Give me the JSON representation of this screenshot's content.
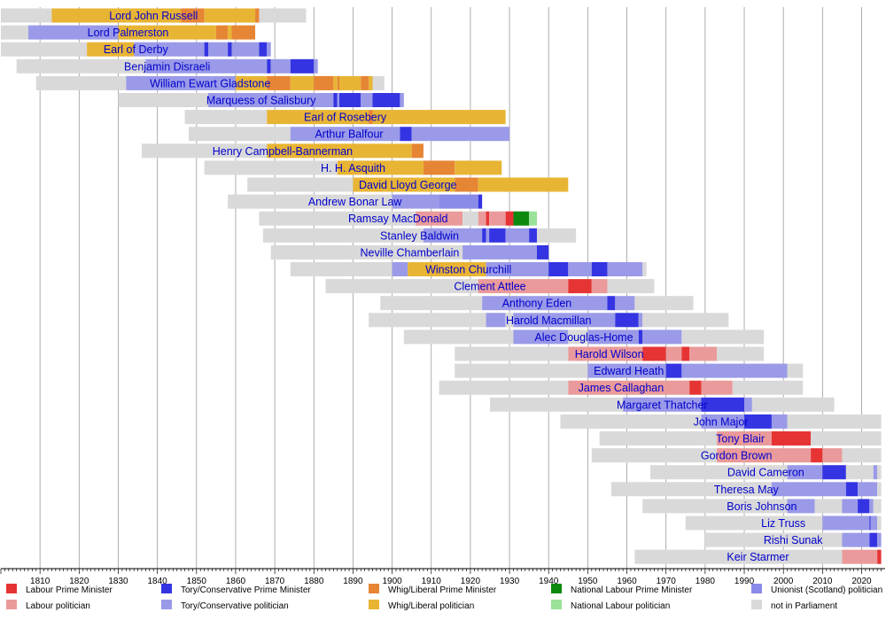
{
  "chart_data": {
    "type": "timeline",
    "title": "",
    "xlabel": "",
    "ylabel": "",
    "xlim": [
      1800,
      2026
    ],
    "grid": true,
    "x_ticks": [
      1810,
      1820,
      1830,
      1840,
      1850,
      1860,
      1870,
      1880,
      1890,
      1900,
      1910,
      1920,
      1930,
      1940,
      1950,
      1960,
      1970,
      1980,
      1990,
      2000,
      2010,
      2020
    ],
    "legend_position": "bottom",
    "categories": {
      "labour_pm": {
        "label": "Labour Prime Minister",
        "color": "#e63434"
      },
      "labour": {
        "label": "Labour politician",
        "color": "#ea9a9a"
      },
      "tory_pm": {
        "label": "Tory/Conservative Prime Minister",
        "color": "#3434e3"
      },
      "tory": {
        "label": "Tory/Conservative politician",
        "color": "#9a9ae8"
      },
      "whig_pm": {
        "label": "Whig/Liberal Prime Minister",
        "color": "#e68534"
      },
      "whig": {
        "label": "Whig/Liberal politician",
        "color": "#e8b434"
      },
      "natlab_pm": {
        "label": "National Labour Prime Minister",
        "color": "#0d8a0d"
      },
      "natlab": {
        "label": "National Labour politician",
        "color": "#9ae29a"
      },
      "unionist": {
        "label": "Unionist (Scotland) politician",
        "color": "#8a8ae8"
      },
      "none": {
        "label": "not in Parliament",
        "color": "#d9d9d9"
      }
    },
    "legend_order": [
      "labour_pm",
      "tory_pm",
      "whig_pm",
      "natlab_pm",
      "unionist",
      "labour",
      "tory",
      "whig",
      "natlab",
      "none"
    ],
    "people": [
      {
        "name": "Lord John Russell",
        "segments": [
          [
            1800,
            1813,
            "none"
          ],
          [
            1813,
            1846,
            "whig"
          ],
          [
            1846,
            1852,
            "whig_pm"
          ],
          [
            1852,
            1865,
            "whig"
          ],
          [
            1865,
            1866,
            "whig_pm"
          ],
          [
            1866,
            1878,
            "none"
          ]
        ]
      },
      {
        "name": "Lord Palmerston",
        "segments": [
          [
            1800,
            1807,
            "none"
          ],
          [
            1807,
            1830,
            "tory"
          ],
          [
            1830,
            1855,
            "whig"
          ],
          [
            1855,
            1858,
            "whig_pm"
          ],
          [
            1858,
            1859,
            "whig"
          ],
          [
            1859,
            1865,
            "whig_pm"
          ]
        ]
      },
      {
        "name": "Earl of Derby",
        "segments": [
          [
            1800,
            1822,
            "none"
          ],
          [
            1822,
            1834,
            "whig"
          ],
          [
            1834,
            1852,
            "tory"
          ],
          [
            1852,
            1853,
            "tory_pm"
          ],
          [
            1853,
            1858,
            "tory"
          ],
          [
            1858,
            1859,
            "tory_pm"
          ],
          [
            1859,
            1866,
            "tory"
          ],
          [
            1866,
            1868,
            "tory_pm"
          ],
          [
            1868,
            1869,
            "tory"
          ]
        ]
      },
      {
        "name": "Benjamin Disraeli",
        "segments": [
          [
            1804,
            1837,
            "none"
          ],
          [
            1837,
            1868,
            "tory"
          ],
          [
            1868,
            1869,
            "tory_pm"
          ],
          [
            1869,
            1874,
            "tory"
          ],
          [
            1874,
            1880,
            "tory_pm"
          ],
          [
            1880,
            1881,
            "tory"
          ]
        ]
      },
      {
        "name": "William Ewart Gladstone",
        "segments": [
          [
            1809,
            1832,
            "none"
          ],
          [
            1832,
            1860,
            "tory"
          ],
          [
            1860,
            1868,
            "whig"
          ],
          [
            1868,
            1874,
            "whig_pm"
          ],
          [
            1874,
            1880,
            "whig"
          ],
          [
            1880,
            1885,
            "whig_pm"
          ],
          [
            1885,
            1886,
            "whig"
          ],
          [
            1886,
            1886.5,
            "whig_pm"
          ],
          [
            1886.5,
            1892,
            "whig"
          ],
          [
            1892,
            1894,
            "whig_pm"
          ],
          [
            1894,
            1895,
            "whig"
          ],
          [
            1895,
            1898,
            "none"
          ]
        ]
      },
      {
        "name": "Marquess of Salisbury",
        "segments": [
          [
            1830,
            1853,
            "none"
          ],
          [
            1853,
            1885,
            "tory"
          ],
          [
            1885,
            1886,
            "tory_pm"
          ],
          [
            1886,
            1886.5,
            "tory"
          ],
          [
            1886.5,
            1892,
            "tory_pm"
          ],
          [
            1892,
            1895,
            "tory"
          ],
          [
            1895,
            1902,
            "tory_pm"
          ],
          [
            1902,
            1903,
            "tory"
          ]
        ]
      },
      {
        "name": "Earl of Rosebery",
        "segments": [
          [
            1847,
            1868,
            "none"
          ],
          [
            1868,
            1894,
            "whig"
          ],
          [
            1894,
            1895,
            "whig_pm"
          ],
          [
            1895,
            1929,
            "whig"
          ]
        ]
      },
      {
        "name": "Arthur Balfour",
        "segments": [
          [
            1848,
            1874,
            "none"
          ],
          [
            1874,
            1902,
            "tory"
          ],
          [
            1902,
            1905,
            "tory_pm"
          ],
          [
            1905,
            1930,
            "tory"
          ]
        ]
      },
      {
        "name": "Henry Campbell-Bannerman",
        "segments": [
          [
            1836,
            1868,
            "none"
          ],
          [
            1868,
            1905,
            "whig"
          ],
          [
            1905,
            1908,
            "whig_pm"
          ]
        ]
      },
      {
        "name": "H. H. Asquith",
        "segments": [
          [
            1852,
            1886,
            "none"
          ],
          [
            1886,
            1908,
            "whig"
          ],
          [
            1908,
            1916,
            "whig_pm"
          ],
          [
            1916,
            1928,
            "whig"
          ]
        ]
      },
      {
        "name": "David Lloyd George",
        "segments": [
          [
            1863,
            1890,
            "none"
          ],
          [
            1890,
            1916,
            "whig"
          ],
          [
            1916,
            1922,
            "whig_pm"
          ],
          [
            1922,
            1945,
            "whig"
          ]
        ]
      },
      {
        "name": "Andrew Bonar Law",
        "segments": [
          [
            1858,
            1900,
            "none"
          ],
          [
            1900,
            1912,
            "tory"
          ],
          [
            1912,
            1922,
            "unionist"
          ],
          [
            1922,
            1923,
            "tory_pm"
          ]
        ]
      },
      {
        "name": "Ramsay MacDonald",
        "segments": [
          [
            1866,
            1906,
            "none"
          ],
          [
            1906,
            1918,
            "labour"
          ],
          [
            1918,
            1922,
            "none"
          ],
          [
            1922,
            1924,
            "labour"
          ],
          [
            1924,
            1924.8,
            "labour_pm"
          ],
          [
            1924.8,
            1929,
            "labour"
          ],
          [
            1929,
            1931,
            "labour_pm"
          ],
          [
            1931,
            1935,
            "natlab_pm"
          ],
          [
            1935,
            1937,
            "natlab"
          ]
        ]
      },
      {
        "name": "Stanley Baldwin",
        "segments": [
          [
            1867,
            1908,
            "none"
          ],
          [
            1908,
            1923,
            "tory"
          ],
          [
            1923,
            1924,
            "tory_pm"
          ],
          [
            1924,
            1924.8,
            "tory"
          ],
          [
            1924.8,
            1929,
            "tory_pm"
          ],
          [
            1929,
            1935,
            "tory"
          ],
          [
            1935,
            1937,
            "tory_pm"
          ],
          [
            1937,
            1947,
            "none"
          ]
        ]
      },
      {
        "name": "Neville Chamberlain",
        "segments": [
          [
            1869,
            1918,
            "none"
          ],
          [
            1918,
            1937,
            "tory"
          ],
          [
            1937,
            1940,
            "tory_pm"
          ]
        ]
      },
      {
        "name": "Winston Churchill",
        "segments": [
          [
            1874,
            1900,
            "none"
          ],
          [
            1900,
            1904,
            "tory"
          ],
          [
            1904,
            1924,
            "whig"
          ],
          [
            1924,
            1940,
            "tory"
          ],
          [
            1940,
            1945,
            "tory_pm"
          ],
          [
            1945,
            1951,
            "tory"
          ],
          [
            1951,
            1955,
            "tory_pm"
          ],
          [
            1955,
            1964,
            "tory"
          ],
          [
            1964,
            1965,
            "none"
          ]
        ]
      },
      {
        "name": "Clement Attlee",
        "segments": [
          [
            1883,
            1922,
            "none"
          ],
          [
            1922,
            1945,
            "labour"
          ],
          [
            1945,
            1951,
            "labour_pm"
          ],
          [
            1951,
            1955,
            "labour"
          ],
          [
            1955,
            1967,
            "none"
          ]
        ]
      },
      {
        "name": "Anthony Eden",
        "segments": [
          [
            1897,
            1923,
            "none"
          ],
          [
            1923,
            1955,
            "tory"
          ],
          [
            1955,
            1957,
            "tory_pm"
          ],
          [
            1957,
            1962,
            "tory"
          ],
          [
            1962,
            1977,
            "none"
          ]
        ]
      },
      {
        "name": "Harold Macmillan",
        "segments": [
          [
            1894,
            1924,
            "none"
          ],
          [
            1924,
            1929,
            "tory"
          ],
          [
            1929,
            1931,
            "none"
          ],
          [
            1931,
            1957,
            "tory"
          ],
          [
            1957,
            1963,
            "tory_pm"
          ],
          [
            1963,
            1964,
            "tory"
          ],
          [
            1964,
            1986,
            "none"
          ]
        ]
      },
      {
        "name": "Alec Douglas-Home",
        "segments": [
          [
            1903,
            1931,
            "none"
          ],
          [
            1931,
            1945,
            "tory"
          ],
          [
            1945,
            1950,
            "none"
          ],
          [
            1950,
            1963,
            "tory"
          ],
          [
            1963,
            1964,
            "tory_pm"
          ],
          [
            1964,
            1974,
            "tory"
          ],
          [
            1974,
            1995,
            "none"
          ]
        ]
      },
      {
        "name": "Harold Wilson",
        "segments": [
          [
            1916,
            1945,
            "none"
          ],
          [
            1945,
            1964,
            "labour"
          ],
          [
            1964,
            1970,
            "labour_pm"
          ],
          [
            1970,
            1974,
            "labour"
          ],
          [
            1974,
            1976,
            "labour_pm"
          ],
          [
            1976,
            1983,
            "labour"
          ],
          [
            1983,
            1995,
            "none"
          ]
        ]
      },
      {
        "name": "Edward Heath",
        "segments": [
          [
            1916,
            1950,
            "none"
          ],
          [
            1950,
            1970,
            "tory"
          ],
          [
            1970,
            1974,
            "tory_pm"
          ],
          [
            1974,
            2001,
            "tory"
          ],
          [
            2001,
            2005,
            "none"
          ]
        ]
      },
      {
        "name": "James Callaghan",
        "segments": [
          [
            1912,
            1945,
            "none"
          ],
          [
            1945,
            1976,
            "labour"
          ],
          [
            1976,
            1979,
            "labour_pm"
          ],
          [
            1979,
            1987,
            "labour"
          ],
          [
            1987,
            2005,
            "none"
          ]
        ]
      },
      {
        "name": "Margaret Thatcher",
        "segments": [
          [
            1925,
            1959,
            "none"
          ],
          [
            1959,
            1979,
            "tory"
          ],
          [
            1979,
            1990,
            "tory_pm"
          ],
          [
            1990,
            1992,
            "tory"
          ],
          [
            1992,
            2013,
            "none"
          ]
        ]
      },
      {
        "name": "John Major",
        "segments": [
          [
            1943,
            1979,
            "none"
          ],
          [
            1979,
            1990,
            "tory"
          ],
          [
            1990,
            1997,
            "tory_pm"
          ],
          [
            1997,
            2001,
            "tory"
          ],
          [
            2001,
            2025,
            "none"
          ]
        ]
      },
      {
        "name": "Tony Blair",
        "segments": [
          [
            1953,
            1983,
            "none"
          ],
          [
            1983,
            1997,
            "labour"
          ],
          [
            1997,
            2007,
            "labour_pm"
          ],
          [
            2007,
            2025,
            "none"
          ]
        ]
      },
      {
        "name": "Gordon Brown",
        "segments": [
          [
            1951,
            1983,
            "none"
          ],
          [
            1983,
            2007,
            "labour"
          ],
          [
            2007,
            2010,
            "labour_pm"
          ],
          [
            2010,
            2015,
            "labour"
          ],
          [
            2015,
            2025,
            "none"
          ]
        ]
      },
      {
        "name": "David Cameron",
        "segments": [
          [
            1966,
            2001,
            "none"
          ],
          [
            2001,
            2010,
            "tory"
          ],
          [
            2010,
            2016,
            "tory_pm"
          ],
          [
            2016,
            2023,
            "none"
          ],
          [
            2023,
            2024,
            "tory"
          ],
          [
            2024,
            2025,
            "none"
          ]
        ]
      },
      {
        "name": "Theresa May",
        "segments": [
          [
            1956,
            1997,
            "none"
          ],
          [
            1997,
            2016,
            "tory"
          ],
          [
            2016,
            2019,
            "tory_pm"
          ],
          [
            2019,
            2024,
            "tory"
          ],
          [
            2024,
            2025,
            "none"
          ]
        ]
      },
      {
        "name": "Boris Johnson",
        "segments": [
          [
            1964,
            2001,
            "none"
          ],
          [
            2001,
            2008,
            "tory"
          ],
          [
            2008,
            2015,
            "none"
          ],
          [
            2015,
            2019,
            "tory"
          ],
          [
            2019,
            2022,
            "tory_pm"
          ],
          [
            2022,
            2023,
            "tory"
          ],
          [
            2023,
            2025,
            "none"
          ]
        ]
      },
      {
        "name": "Liz Truss",
        "segments": [
          [
            1975,
            2010,
            "none"
          ],
          [
            2010,
            2022,
            "tory"
          ],
          [
            2022,
            2022.3,
            "tory_pm"
          ],
          [
            2022.3,
            2024,
            "tory"
          ],
          [
            2024,
            2025,
            "none"
          ]
        ]
      },
      {
        "name": "Rishi Sunak",
        "segments": [
          [
            1980,
            2015,
            "none"
          ],
          [
            2015,
            2022,
            "tory"
          ],
          [
            2022,
            2024,
            "tory_pm"
          ],
          [
            2024,
            2025,
            "tory"
          ]
        ]
      },
      {
        "name": "Keir Starmer",
        "segments": [
          [
            1962,
            2015,
            "none"
          ],
          [
            2015,
            2024,
            "labour"
          ],
          [
            2024,
            2025,
            "labour_pm"
          ]
        ]
      }
    ]
  }
}
